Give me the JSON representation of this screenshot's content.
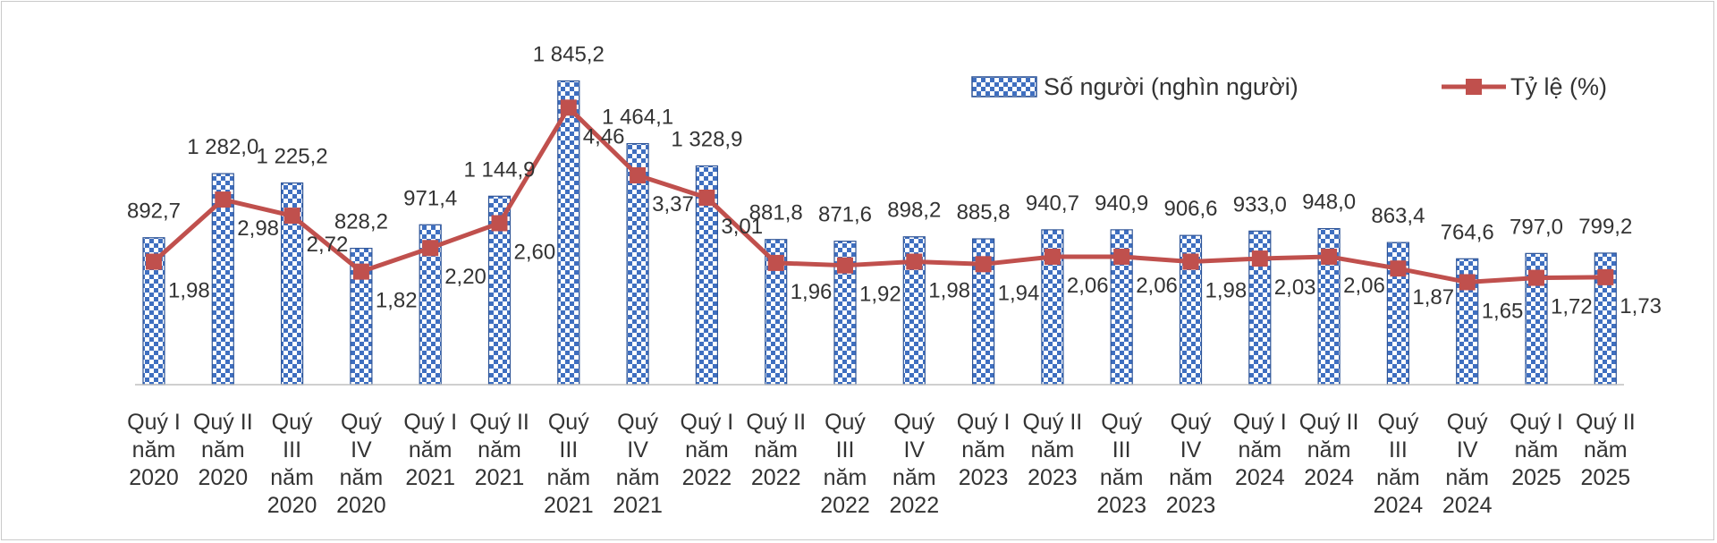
{
  "chart_data": {
    "type": "bar",
    "categories": [
      [
        "Quý I",
        "năm",
        "2020"
      ],
      [
        "Quý II",
        "năm",
        "2020"
      ],
      [
        "Quý",
        "III",
        "năm",
        "2020"
      ],
      [
        "Quý",
        "IV",
        "năm",
        "2020"
      ],
      [
        "Quý I",
        "năm",
        "2021"
      ],
      [
        "Quý II",
        "năm",
        "2021"
      ],
      [
        "Quý",
        "III",
        "năm",
        "2021"
      ],
      [
        "Quý",
        "IV",
        "năm",
        "2021"
      ],
      [
        "Quý I",
        "năm",
        "2022"
      ],
      [
        "Quý II",
        "năm",
        "2022"
      ],
      [
        "Quý",
        "III",
        "năm",
        "2022"
      ],
      [
        "Quý",
        "IV",
        "năm",
        "2022"
      ],
      [
        "Quý I",
        "năm",
        "2023"
      ],
      [
        "Quý II",
        "năm",
        "2023"
      ],
      [
        "Quý",
        "III",
        "năm",
        "2023"
      ],
      [
        "Quý",
        "IV",
        "năm",
        "2023"
      ],
      [
        "Quý I",
        "năm",
        "2024"
      ],
      [
        "Quý II",
        "năm",
        "2024"
      ],
      [
        "Quý",
        "III",
        "năm",
        "2024"
      ],
      [
        "Quý",
        "IV",
        "năm",
        "2024"
      ],
      [
        "Quý I",
        "năm",
        "2025"
      ],
      [
        "Quý II",
        "năm",
        "2025"
      ]
    ],
    "series": [
      {
        "name": "Số người (nghìn người)",
        "kind": "bar",
        "pattern": "checkered blue/white",
        "color": "#3f6fc0",
        "values": [
          892.7,
          1282.0,
          1225.2,
          828.2,
          971.4,
          1144.9,
          1845.2,
          1464.1,
          1328.9,
          881.8,
          871.6,
          898.2,
          885.8,
          940.7,
          940.9,
          906.6,
          933.0,
          948.0,
          863.4,
          764.6,
          797.0,
          799.2
        ],
        "labels": [
          "892,7",
          "1 282,0",
          "1 225,2",
          "828,2",
          "971,4",
          "1 144,9",
          "1 845,2",
          "1 464,1",
          "1 328,9",
          "881,8",
          "871,6",
          "898,2",
          "885,8",
          "940,7",
          "940,9",
          "906,6",
          "933,0",
          "948,0",
          "863,4",
          "764,6",
          "797,0",
          "799,2"
        ]
      },
      {
        "name": "Tỷ lệ (%)",
        "kind": "line",
        "marker": "square",
        "color": "#c0504d",
        "values": [
          1.98,
          2.98,
          2.72,
          1.82,
          2.2,
          2.6,
          4.46,
          3.37,
          3.01,
          1.96,
          1.92,
          1.98,
          1.94,
          2.06,
          2.06,
          1.98,
          2.03,
          2.06,
          1.87,
          1.65,
          1.72,
          1.73
        ],
        "labels": [
          "1,98",
          "2,98",
          "2,72",
          "1,82",
          "2,20",
          "2,60",
          "4,46",
          "3,37",
          "3,01",
          "1,96",
          "1,92",
          "1,98",
          "1,94",
          "2,06",
          "2,06",
          "1,98",
          "2,03",
          "2,06",
          "1,87",
          "1,65",
          "1,72",
          "1,73"
        ]
      }
    ],
    "title": "",
    "xlabel": "",
    "ylabel": "",
    "ylim_bars": [
      0,
      2000
    ],
    "ylim_line": [
      0,
      5.3
    ],
    "grid": false,
    "legend": "top-right"
  }
}
